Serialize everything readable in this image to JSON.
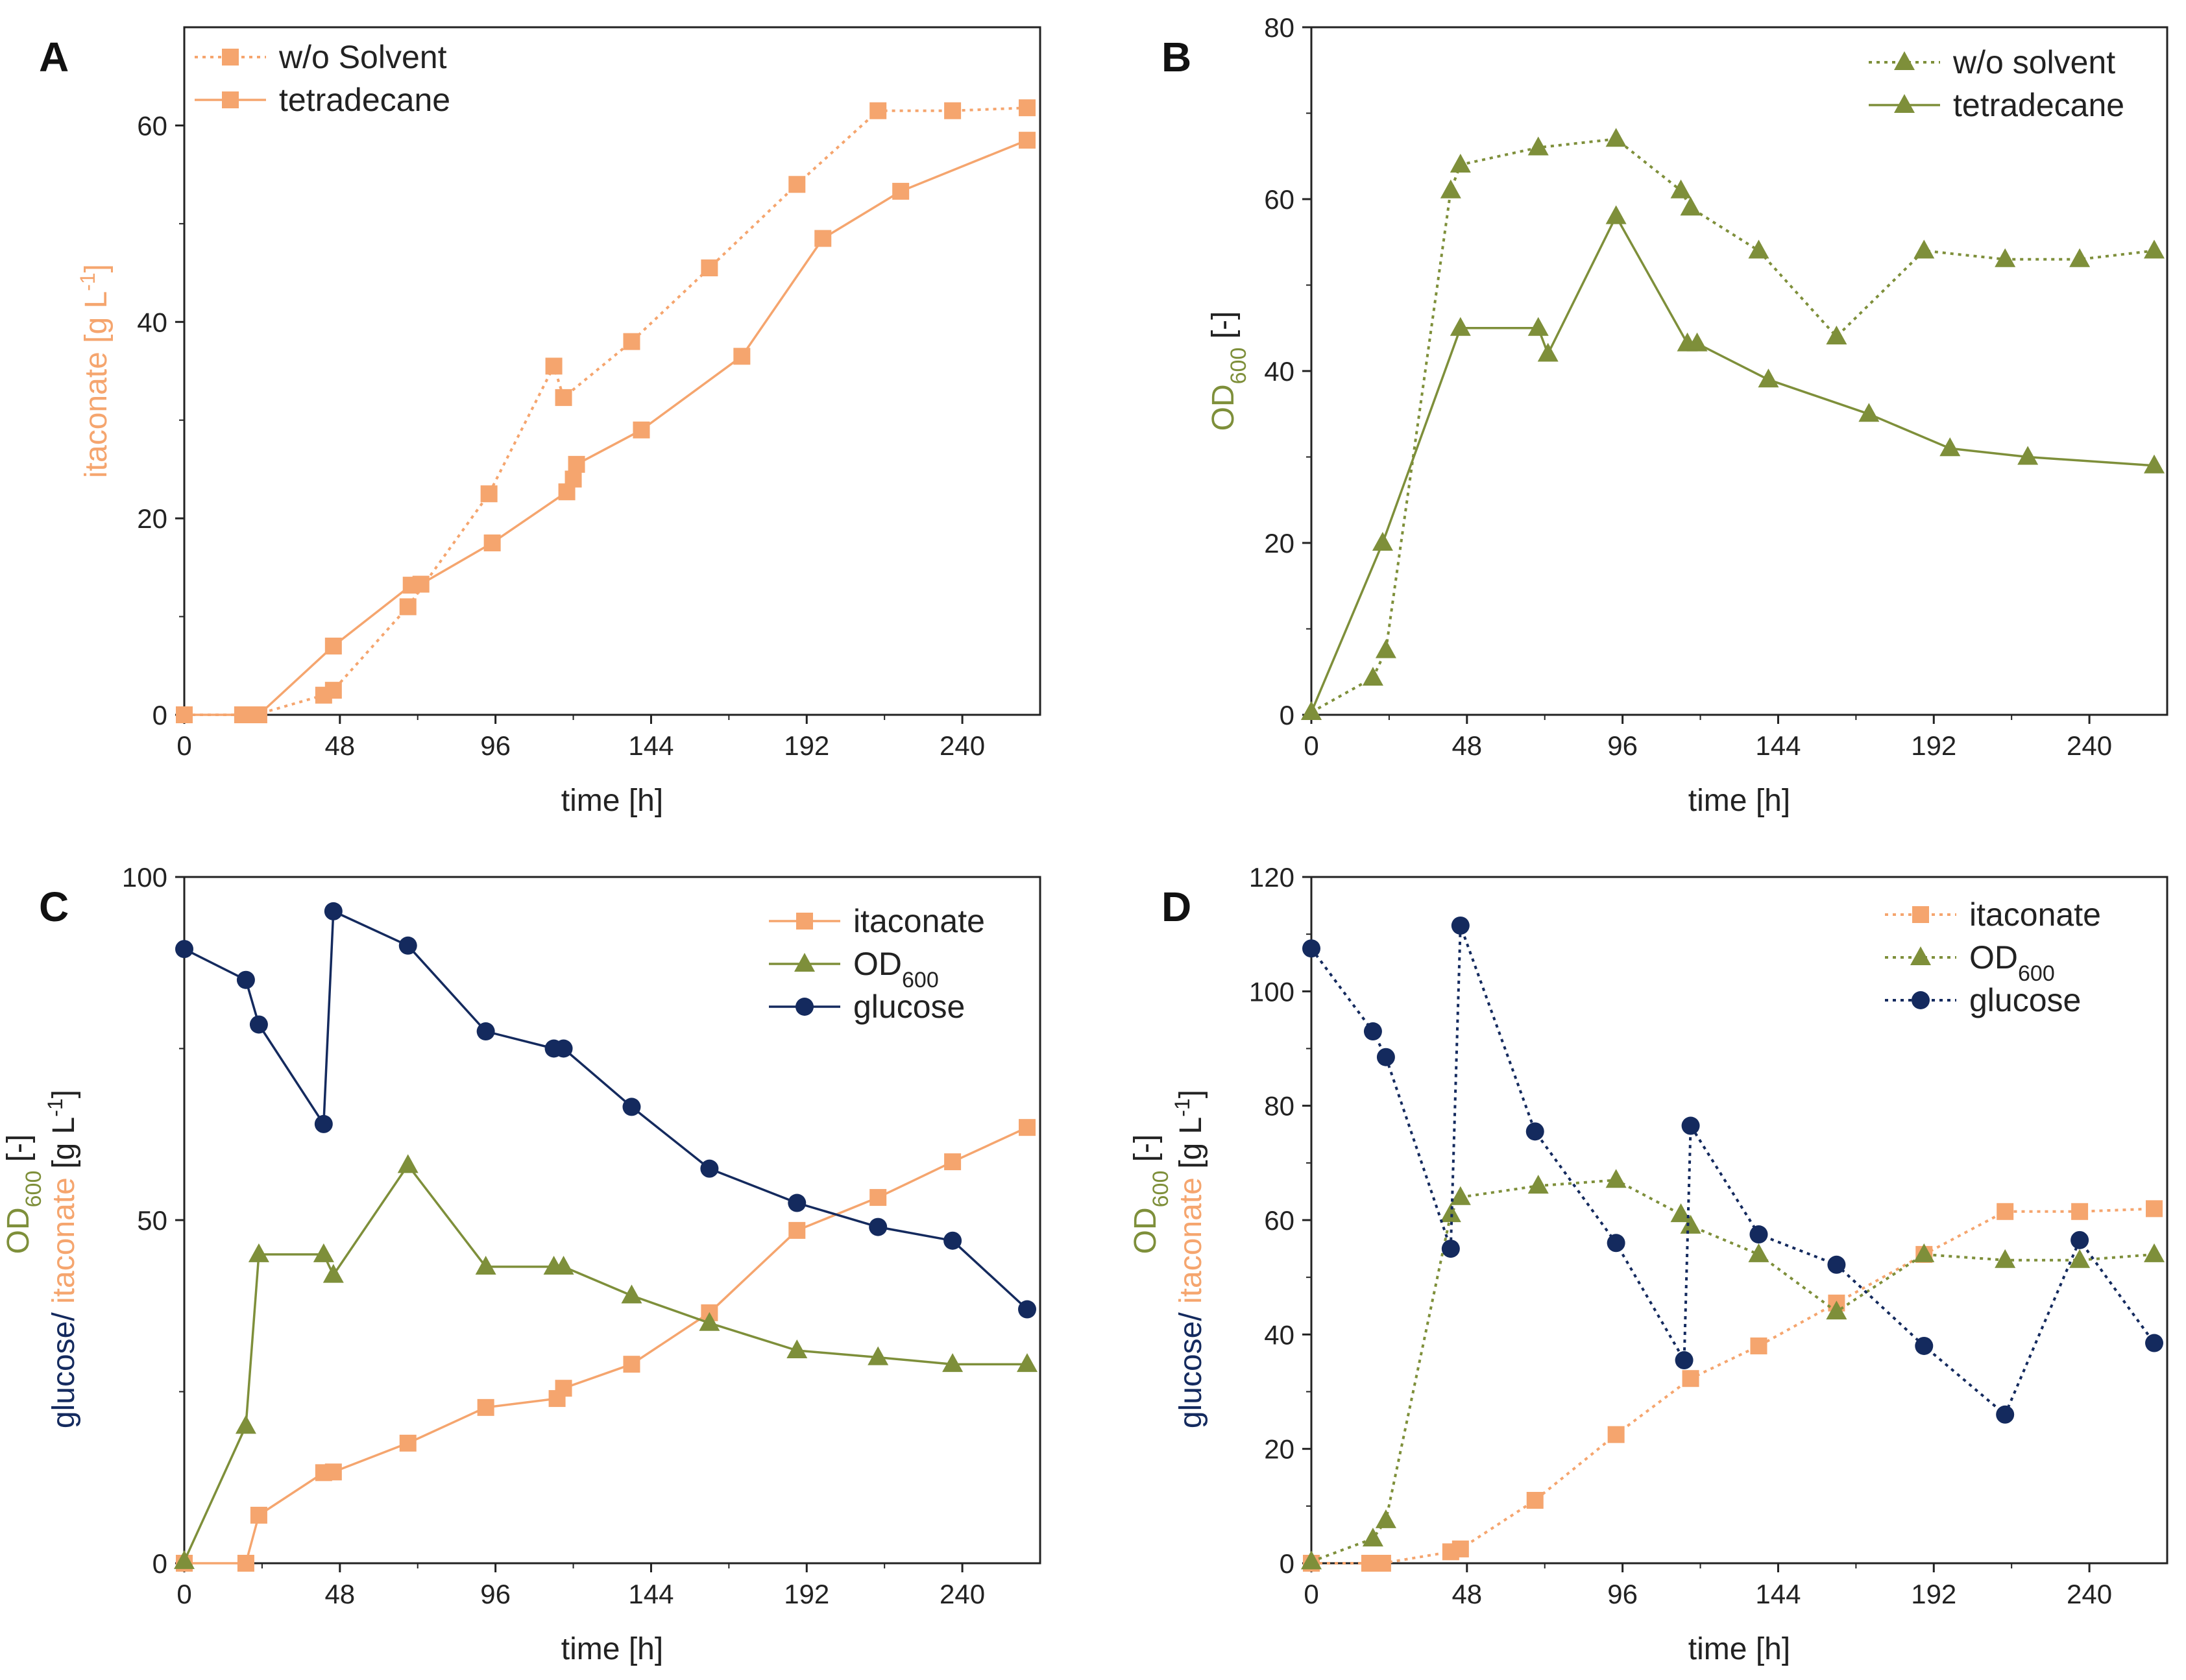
{
  "colors": {
    "itaconate": "#F5A56E",
    "od600": "#7E8F3A",
    "glucose": "#142A5E",
    "axis": "#222222"
  },
  "chart_data": [
    {
      "panel": "A",
      "type": "line",
      "xlabel": "time [h]",
      "ylabel_parts": [
        {
          "text": "itaconate [g L",
          "role": "itaconate"
        },
        {
          "text": "-1",
          "role": "itaconate",
          "sup": true
        },
        {
          "text": "]",
          "role": "itaconate"
        }
      ],
      "xlim": [
        0,
        264
      ],
      "ylim": [
        0,
        70
      ],
      "xticks": [
        0,
        48,
        96,
        144,
        192,
        240
      ],
      "yticks": [
        0,
        20,
        40,
        60
      ],
      "legend_position": "top-left",
      "series": [
        {
          "name": "w/o Solvent",
          "color_key": "itaconate",
          "dash": "dotted",
          "marker": "square",
          "points": [
            [
              0,
              0
            ],
            [
              18,
              0
            ],
            [
              22,
              0
            ],
            [
              43,
              2
            ],
            [
              46,
              2.5
            ],
            [
              69,
              11
            ],
            [
              94,
              22.5
            ],
            [
              114,
              35.5
            ],
            [
              117,
              32.3
            ],
            [
              138,
              38
            ],
            [
              162,
              45.5
            ],
            [
              189,
              54
            ],
            [
              214,
              61.5
            ],
            [
              237,
              61.5
            ],
            [
              260,
              61.8
            ]
          ]
        },
        {
          "name": "tetradecane",
          "color_key": "itaconate",
          "dash": "solid",
          "marker": "square",
          "points": [
            [
              0,
              0
            ],
            [
              18,
              0
            ],
            [
              23,
              0
            ],
            [
              46,
              7
            ],
            [
              70,
              13.2
            ],
            [
              73,
              13.3
            ],
            [
              95,
              17.5
            ],
            [
              118,
              22.7
            ],
            [
              120,
              24
            ],
            [
              121,
              25.5
            ],
            [
              141,
              29
            ],
            [
              172,
              36.5
            ],
            [
              197,
              48.5
            ],
            [
              221,
              53.3
            ],
            [
              260,
              58.5
            ]
          ]
        }
      ]
    },
    {
      "panel": "B",
      "type": "line",
      "xlabel": "time [h]",
      "ylabel_parts": [
        {
          "text": "OD",
          "role": "od600"
        },
        {
          "text": "600",
          "role": "od600",
          "sub": true
        },
        {
          "text": " [-]",
          "role": "axis"
        }
      ],
      "xlim": [
        0,
        264
      ],
      "ylim": [
        0,
        80
      ],
      "xticks": [
        0,
        48,
        96,
        144,
        192,
        240
      ],
      "yticks": [
        0,
        20,
        40,
        60,
        80
      ],
      "legend_position": "top-right",
      "series": [
        {
          "name": "w/o solvent",
          "color_key": "od600",
          "dash": "dotted",
          "marker": "triangle",
          "points": [
            [
              0,
              0.3
            ],
            [
              19,
              4.3
            ],
            [
              23,
              7.5
            ],
            [
              43,
              61
            ],
            [
              46,
              64
            ],
            [
              70,
              66
            ],
            [
              94,
              67
            ],
            [
              114,
              61
            ],
            [
              117,
              59
            ],
            [
              138,
              54
            ],
            [
              162,
              44
            ],
            [
              189,
              54
            ],
            [
              214,
              53
            ],
            [
              237,
              53
            ],
            [
              260,
              54
            ]
          ]
        },
        {
          "name": "tetradecane",
          "color_key": "od600",
          "dash": "solid",
          "marker": "triangle",
          "points": [
            [
              0,
              0.3
            ],
            [
              22,
              20
            ],
            [
              46,
              45
            ],
            [
              70,
              45
            ],
            [
              73,
              42
            ],
            [
              94,
              58
            ],
            [
              116,
              43.2
            ],
            [
              119,
              43.2
            ],
            [
              141,
              39
            ],
            [
              172,
              35
            ],
            [
              197,
              31
            ],
            [
              221,
              30
            ],
            [
              260,
              29
            ]
          ]
        }
      ]
    },
    {
      "panel": "C",
      "type": "line",
      "xlabel": "time [h]",
      "ylabel_parts": [
        {
          "text": "glucose/ ",
          "role": "glucose"
        },
        {
          "text": "itaconate",
          "role": "itaconate"
        },
        {
          "text": " [g L",
          "role": "axis"
        },
        {
          "text": "-1",
          "role": "axis",
          "sup": true
        },
        {
          "text": "]",
          "role": "axis"
        }
      ],
      "ylabel2_parts": [
        {
          "text": "OD",
          "role": "od600"
        },
        {
          "text": "600",
          "role": "od600",
          "sub": true
        },
        {
          "text": " [-]",
          "role": "axis"
        }
      ],
      "xlim": [
        0,
        264
      ],
      "ylim": [
        0,
        100
      ],
      "xticks": [
        0,
        48,
        96,
        144,
        192,
        240
      ],
      "yticks": [
        0,
        50,
        100
      ],
      "legend_position": "top-right",
      "series": [
        {
          "name": "itaconate",
          "color_key": "itaconate",
          "dash": "solid",
          "marker": "square",
          "points": [
            [
              0,
              0
            ],
            [
              19,
              0
            ],
            [
              23,
              7
            ],
            [
              43,
              13.2
            ],
            [
              46,
              13.3
            ],
            [
              69,
              17.5
            ],
            [
              93,
              22.7
            ],
            [
              115,
              24
            ],
            [
              117,
              25.5
            ],
            [
              138,
              29
            ],
            [
              162,
              36.5
            ],
            [
              189,
              48.5
            ],
            [
              214,
              53.3
            ],
            [
              237,
              58.5
            ],
            [
              260,
              63.5
            ]
          ]
        },
        {
          "name": "OD",
          "sub": "600",
          "color_key": "od600",
          "dash": "solid",
          "marker": "triangle",
          "points": [
            [
              0,
              0.3
            ],
            [
              19,
              20
            ],
            [
              23,
              45
            ],
            [
              43,
              45
            ],
            [
              46,
              42
            ],
            [
              69,
              58
            ],
            [
              93,
              43.2
            ],
            [
              114,
              43.2
            ],
            [
              117,
              43.2
            ],
            [
              138,
              39
            ],
            [
              162,
              35
            ],
            [
              189,
              31
            ],
            [
              214,
              30
            ],
            [
              237,
              29
            ],
            [
              260,
              29
            ]
          ]
        },
        {
          "name": "glucose",
          "color_key": "glucose",
          "dash": "solid",
          "marker": "circle",
          "points": [
            [
              0,
              89.5
            ],
            [
              19,
              85
            ],
            [
              23,
              78.5
            ],
            [
              43,
              64
            ],
            [
              46,
              95
            ],
            [
              69,
              90
            ],
            [
              93,
              77.5
            ],
            [
              114,
              75
            ],
            [
              117,
              75
            ],
            [
              138,
              66.5
            ],
            [
              162,
              57.5
            ],
            [
              189,
              52.5
            ],
            [
              214,
              49
            ],
            [
              237,
              47
            ],
            [
              260,
              37
            ]
          ]
        }
      ]
    },
    {
      "panel": "D",
      "type": "line",
      "xlabel": "time [h]",
      "ylabel_parts": [
        {
          "text": "glucose/ ",
          "role": "glucose"
        },
        {
          "text": "itaconate",
          "role": "itaconate"
        },
        {
          "text": " [g L",
          "role": "axis"
        },
        {
          "text": "-1",
          "role": "axis",
          "sup": true
        },
        {
          "text": "]",
          "role": "axis"
        }
      ],
      "ylabel2_parts": [
        {
          "text": "OD",
          "role": "od600"
        },
        {
          "text": "600",
          "role": "od600",
          "sub": true
        },
        {
          "text": " [-]",
          "role": "axis"
        }
      ],
      "xlim": [
        0,
        264
      ],
      "ylim": [
        0,
        120
      ],
      "xticks": [
        0,
        48,
        96,
        144,
        192,
        240
      ],
      "yticks": [
        0,
        20,
        40,
        60,
        80,
        100,
        120
      ],
      "legend_position": "top-right",
      "series": [
        {
          "name": "itaconate",
          "color_key": "itaconate",
          "dash": "dotted",
          "marker": "square",
          "points": [
            [
              0,
              0
            ],
            [
              18,
              0
            ],
            [
              22,
              0
            ],
            [
              43,
              2
            ],
            [
              46,
              2.5
            ],
            [
              69,
              11
            ],
            [
              94,
              22.5
            ],
            [
              117,
              32.3
            ],
            [
              138,
              38
            ],
            [
              162,
              45.5
            ],
            [
              189,
              54
            ],
            [
              214,
              61.5
            ],
            [
              237,
              61.5
            ],
            [
              260,
              62
            ]
          ]
        },
        {
          "name": "OD",
          "sub": "600",
          "color_key": "od600",
          "dash": "dotted",
          "marker": "triangle",
          "points": [
            [
              0,
              0.3
            ],
            [
              19,
              4.3
            ],
            [
              23,
              7.5
            ],
            [
              43,
              61
            ],
            [
              46,
              64
            ],
            [
              70,
              66
            ],
            [
              94,
              67
            ],
            [
              114,
              61
            ],
            [
              117,
              59
            ],
            [
              138,
              54
            ],
            [
              162,
              44
            ],
            [
              189,
              54
            ],
            [
              214,
              53
            ],
            [
              237,
              53
            ],
            [
              260,
              54
            ]
          ]
        },
        {
          "name": "glucose",
          "color_key": "glucose",
          "dash": "dotted",
          "marker": "circle",
          "points": [
            [
              0,
              107.5
            ],
            [
              19,
              93
            ],
            [
              23,
              88.5
            ],
            [
              43,
              55
            ],
            [
              46,
              111.5
            ],
            [
              69,
              75.5
            ],
            [
              94,
              56
            ],
            [
              115,
              35.5
            ],
            [
              117,
              76.5
            ],
            [
              138,
              57.5
            ],
            [
              162,
              52.2
            ],
            [
              189,
              38
            ],
            [
              214,
              26
            ],
            [
              237,
              56.5
            ],
            [
              260,
              38.5
            ]
          ]
        }
      ]
    }
  ]
}
